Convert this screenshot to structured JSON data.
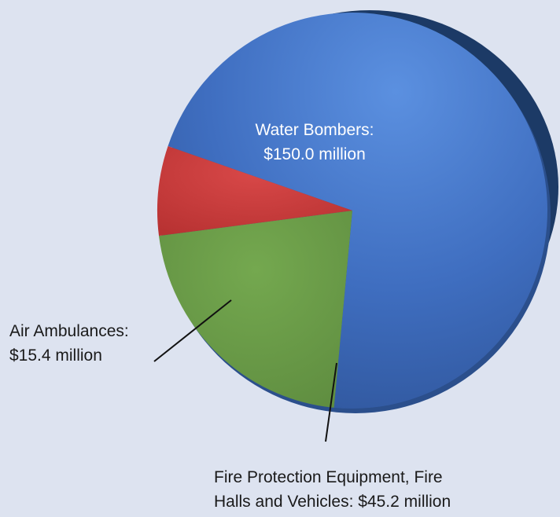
{
  "chart_data": {
    "type": "pie",
    "unit": "$ million",
    "slices": [
      {
        "label_lines": [
          "Water Bombers:",
          "$150.0 million"
        ],
        "value": 150.0,
        "color": "#3f6ec0"
      },
      {
        "label_lines": [
          "Fire Protection Equipment, Fire",
          "Halls and Vehicles: $45.2 million"
        ],
        "value": 45.2,
        "color": "#6a9a4a"
      },
      {
        "label_lines": [
          "Air Ambulances:",
          "$15.4 million"
        ],
        "value": 15.4,
        "color": "#cc3e3e"
      }
    ],
    "legend": "none",
    "title": ""
  }
}
